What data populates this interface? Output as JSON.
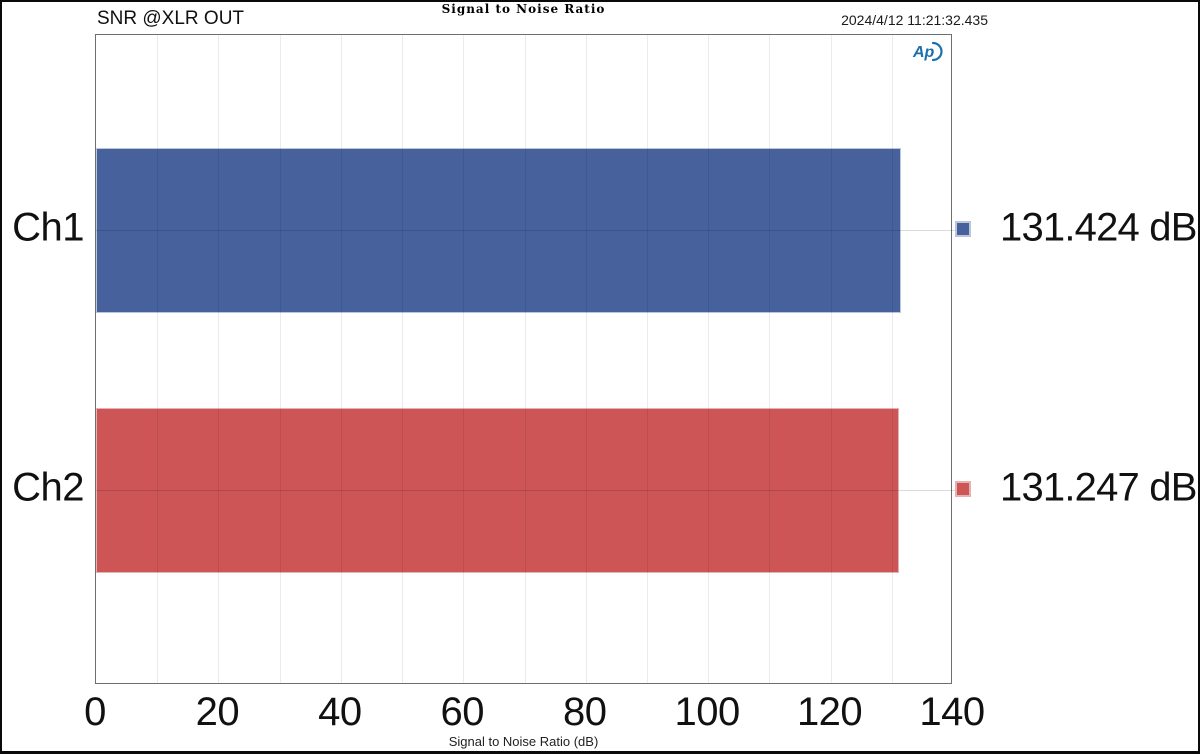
{
  "header": {
    "measurement_label": "SNR @XLR OUT",
    "timestamp": "2024/4/12 11:21:32.435"
  },
  "chart_data": {
    "type": "bar",
    "orientation": "horizontal",
    "title": "Signal to Noise Ratio",
    "xlabel": "Signal to Noise Ratio (dB)",
    "categories": [
      "Ch1",
      "Ch2"
    ],
    "values": [
      131.424,
      131.247
    ],
    "value_labels": [
      "131.424 dB",
      "131.247 dB"
    ],
    "units": "dB",
    "xlim": [
      0,
      140
    ],
    "x_ticks": [
      0,
      20,
      40,
      60,
      80,
      100,
      120,
      140
    ],
    "minor_grid_step_db": 10,
    "grid": true,
    "legend_position": "right",
    "series_colors": [
      "#46619c",
      "#cd5555"
    ],
    "series_outline_colors": [
      "#bcc6db",
      "#e3b3b3"
    ]
  },
  "branding": {
    "logo": "audio-precision-ap-logo",
    "logo_text": "Ap",
    "logo_color": "#1b6fae"
  }
}
